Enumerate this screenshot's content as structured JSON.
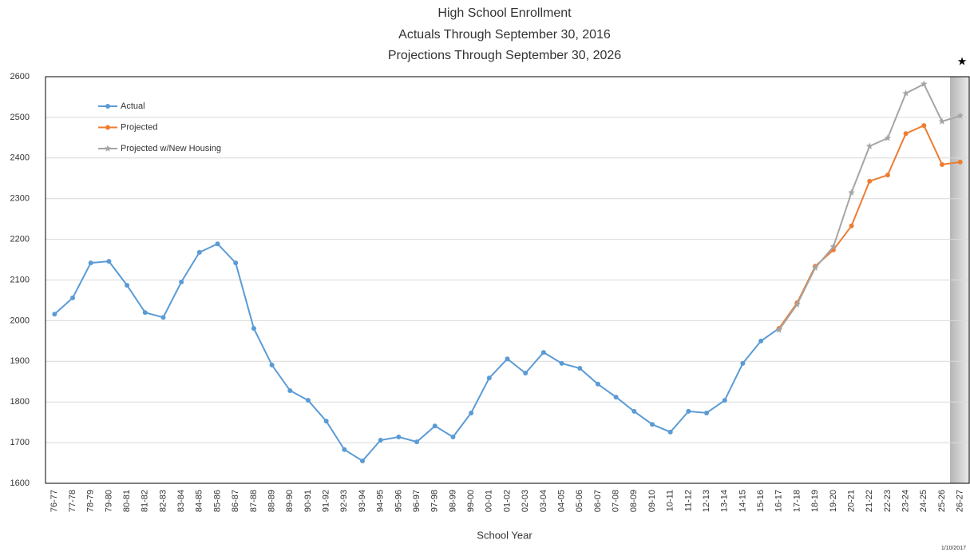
{
  "chart_data": {
    "type": "line",
    "title": "High School Enrollment",
    "subtitle": [
      "Actuals Through September 30, 2016",
      "Projections Through September 30, 2026"
    ],
    "x_label": "School Year",
    "footnote": "1/10/2017",
    "categories": [
      "76-77",
      "77-78",
      "78-79",
      "79-80",
      "80-81",
      "81-82",
      "82-83",
      "83-84",
      "84-85",
      "85-86",
      "86-87",
      "87-88",
      "88-89",
      "89-90",
      "90-91",
      "91-92",
      "92-93",
      "93-94",
      "94-95",
      "95-96",
      "96-97",
      "97-98",
      "98-99",
      "99-00",
      "00-01",
      "01-02",
      "02-03",
      "03-04",
      "04-05",
      "05-06",
      "06-07",
      "07-08",
      "08-09",
      "09-10",
      "10-11",
      "11-12",
      "12-13",
      "13-14",
      "14-15",
      "15-16",
      "16-17",
      "17-18",
      "18-19",
      "19-20",
      "20-21",
      "21-22",
      "22-23",
      "23-24",
      "24-25",
      "25-26",
      "26-27"
    ],
    "series": [
      {
        "name": "Actual",
        "color": "#5b9bd5",
        "marker": "circle",
        "values": [
          2016,
          2056,
          2142,
          2146,
          2087,
          2020,
          2008,
          2095,
          2168,
          2189,
          2142,
          1981,
          1891,
          1828,
          1804,
          1753,
          1683,
          1655,
          1706,
          1714,
          1702,
          1741,
          1714,
          1773,
          1859,
          1906,
          1871,
          1922,
          1895,
          1883,
          1844,
          1812,
          1777,
          1745,
          1726,
          1777,
          1773,
          1804,
          1895,
          1950,
          1981,
          null,
          null,
          null,
          null,
          null,
          null,
          null,
          null,
          null,
          null
        ]
      },
      {
        "name": "Projected",
        "color": "#ed7d31",
        "marker": "circle",
        "values": [
          null,
          null,
          null,
          null,
          null,
          null,
          null,
          null,
          null,
          null,
          null,
          null,
          null,
          null,
          null,
          null,
          null,
          null,
          null,
          null,
          null,
          null,
          null,
          null,
          null,
          null,
          null,
          null,
          null,
          null,
          null,
          null,
          null,
          null,
          null,
          null,
          null,
          null,
          null,
          null,
          1981,
          2044,
          2134,
          2174,
          2233,
          2343,
          2358,
          2460,
          2480,
          2384,
          2390
        ]
      },
      {
        "name": "Projected w/New Housing",
        "color": "#a5a5a5",
        "marker": "star",
        "values": [
          null,
          null,
          null,
          null,
          null,
          null,
          null,
          null,
          null,
          null,
          null,
          null,
          null,
          null,
          null,
          null,
          null,
          null,
          null,
          null,
          null,
          null,
          null,
          null,
          null,
          null,
          null,
          null,
          null,
          null,
          null,
          null,
          null,
          null,
          null,
          null,
          null,
          null,
          null,
          null,
          1977,
          2040,
          2130,
          2182,
          2315,
          2429,
          2449,
          2559,
          2582,
          2490,
          2504
        ]
      }
    ],
    "ylim": [
      1600,
      2600
    ],
    "yticks": [
      1600,
      1700,
      1800,
      1900,
      2000,
      2100,
      2200,
      2300,
      2400,
      2500,
      2600
    ],
    "grid": true
  }
}
